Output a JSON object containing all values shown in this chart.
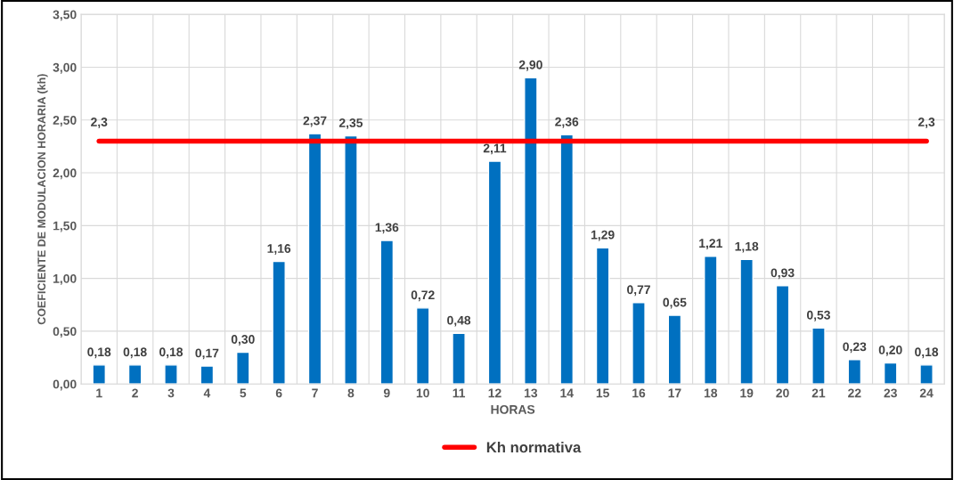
{
  "chart_data": {
    "type": "bar",
    "xlabel": "HORAS",
    "ylabel": "COEFICIENTE DE MODULACION HORARIA (kh)",
    "categories": [
      "1",
      "2",
      "3",
      "4",
      "5",
      "6",
      "7",
      "8",
      "9",
      "10",
      "11",
      "12",
      "13",
      "14",
      "15",
      "16",
      "17",
      "18",
      "19",
      "20",
      "21",
      "22",
      "23",
      "24"
    ],
    "series": [
      {
        "color": "#0070c0",
        "values": [
          0.18,
          0.18,
          0.18,
          0.17,
          0.3,
          1.16,
          2.37,
          2.35,
          1.36,
          0.72,
          0.48,
          2.11,
          2.9,
          2.36,
          1.29,
          0.77,
          0.65,
          1.21,
          1.18,
          0.93,
          0.53,
          0.23,
          0.2,
          0.18
        ],
        "value_labels": [
          "0,18",
          "0,18",
          "0,18",
          "0,17",
          "0,30",
          "1,16",
          "2,37",
          "2,35",
          "1,36",
          "0,72",
          "0,48",
          "2,11",
          "2,90",
          "2,36",
          "1,29",
          "0,77",
          "0,65",
          "1,21",
          "1,18",
          "0,93",
          "0,53",
          "0,23",
          "0,20",
          "0,18"
        ]
      },
      {
        "type": "line",
        "name": "Kh normativa",
        "color": "#ff0000",
        "values": [
          2.3,
          2.3,
          2.3,
          2.3,
          2.3,
          2.3,
          2.3,
          2.3,
          2.3,
          2.3,
          2.3,
          2.3,
          2.3,
          2.3,
          2.3,
          2.3,
          2.3,
          2.3,
          2.3,
          2.3,
          2.3,
          2.3,
          2.3,
          2.3
        ],
        "value_labels": [
          "2,3",
          null,
          null,
          null,
          null,
          null,
          null,
          null,
          null,
          null,
          null,
          null,
          null,
          null,
          null,
          null,
          null,
          null,
          null,
          null,
          null,
          null,
          null,
          "2,3"
        ]
      }
    ],
    "ylim": [
      0,
      3.5
    ],
    "yticks": [
      {
        "value": 0,
        "label": "0,00"
      },
      {
        "value": 0.5,
        "label": "0,50"
      },
      {
        "value": 1,
        "label": "1,00"
      },
      {
        "value": 1.5,
        "label": "1,50"
      },
      {
        "value": 2,
        "label": "2,00"
      },
      {
        "value": 2.5,
        "label": "2,50"
      },
      {
        "value": 3,
        "label": "3,00"
      },
      {
        "value": 3.5,
        "label": "3,50"
      }
    ],
    "grid": true,
    "legend": "bottom",
    "marker": "none",
    "line_style": "solid"
  }
}
